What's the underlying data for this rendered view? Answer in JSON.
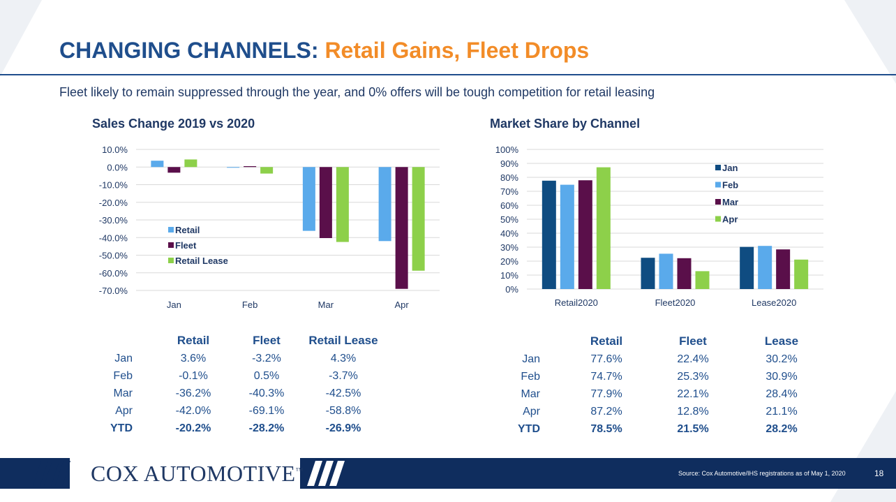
{
  "slide": {
    "title_main": "CHANGING CHANNELS:",
    "title_accent": "Retail Gains, Fleet Drops",
    "subtitle": "Fleet likely to remain suppressed through the year, and 0% offers will be tough competition for retail leasing",
    "page_number": "18",
    "source": "Source: Cox Automotive/IHS registrations as of May 1, 2020",
    "logo_text": "COX AUTOMOTIVE",
    "logo_tm": "™"
  },
  "colors": {
    "navy": "#1f4e8c",
    "orange": "#f28c28",
    "retail": "#5aaaeb",
    "fleet": "#5a0f4a",
    "lease": "#8dd04a",
    "jan": "#0f4c81",
    "feb": "#5aaaeb",
    "mar": "#5a0f4a",
    "apr": "#8dd04a"
  },
  "chart_data": [
    {
      "type": "bar",
      "title": "Sales Change 2019 vs 2020",
      "categories": [
        "Jan",
        "Feb",
        "Mar",
        "Apr"
      ],
      "series": [
        {
          "name": "Retail",
          "values": [
            3.6,
            -0.1,
            -36.2,
            -42.0
          ]
        },
        {
          "name": "Fleet",
          "values": [
            -3.2,
            0.5,
            -40.3,
            -69.1
          ]
        },
        {
          "name": "Retail Lease",
          "values": [
            4.3,
            -3.7,
            -42.5,
            -58.8
          ]
        }
      ],
      "ylim": [
        -70,
        10
      ],
      "yticks": [
        "10.0%",
        "0.0%",
        "-10.0%",
        "-20.0%",
        "-30.0%",
        "-40.0%",
        "-50.0%",
        "-60.0%",
        "-70.0%"
      ],
      "legend": "inside-left",
      "grid": true
    },
    {
      "type": "bar",
      "title": "Market Share by Channel",
      "categories": [
        "Retail2020",
        "Fleet2020",
        "Lease2020"
      ],
      "series": [
        {
          "name": "Jan",
          "values": [
            77.6,
            22.4,
            30.2
          ]
        },
        {
          "name": "Feb",
          "values": [
            74.7,
            25.3,
            30.9
          ]
        },
        {
          "name": "Mar",
          "values": [
            77.9,
            22.1,
            28.4
          ]
        },
        {
          "name": "Apr",
          "values": [
            87.2,
            12.8,
            21.1
          ]
        }
      ],
      "ylim": [
        0,
        100
      ],
      "yticks": [
        "100%",
        "90%",
        "80%",
        "70%",
        "60%",
        "50%",
        "40%",
        "30%",
        "20%",
        "10%",
        "0%"
      ],
      "legend": "top-right",
      "grid": true
    }
  ],
  "table_left": {
    "headers": [
      "Retail",
      "Fleet",
      "Retail Lease"
    ],
    "rows": [
      {
        "label": "Jan",
        "values": [
          "3.6%",
          "-3.2%",
          "4.3%"
        ]
      },
      {
        "label": "Feb",
        "values": [
          "-0.1%",
          "0.5%",
          "-3.7%"
        ]
      },
      {
        "label": "Mar",
        "values": [
          "-36.2%",
          "-40.3%",
          "-42.5%"
        ]
      },
      {
        "label": "Apr",
        "values": [
          "-42.0%",
          "-69.1%",
          "-58.8%"
        ]
      },
      {
        "label": "YTD",
        "values": [
          "-20.2%",
          "-28.2%",
          "-26.9%"
        ]
      }
    ]
  },
  "table_right": {
    "headers": [
      "Retail",
      "Fleet",
      "Lease"
    ],
    "rows": [
      {
        "label": "Jan",
        "values": [
          "77.6%",
          "22.4%",
          "30.2%"
        ]
      },
      {
        "label": "Feb",
        "values": [
          "74.7%",
          "25.3%",
          "30.9%"
        ]
      },
      {
        "label": "Mar",
        "values": [
          "77.9%",
          "22.1%",
          "28.4%"
        ]
      },
      {
        "label": "Apr",
        "values": [
          "87.2%",
          "12.8%",
          "21.1%"
        ]
      },
      {
        "label": "YTD",
        "values": [
          "78.5%",
          "21.5%",
          "28.2%"
        ]
      }
    ]
  }
}
